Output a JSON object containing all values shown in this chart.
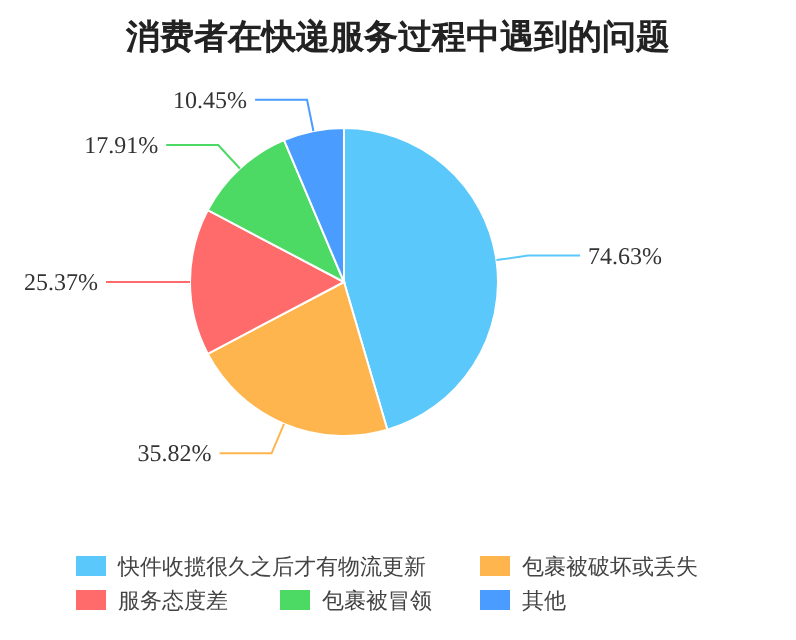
{
  "chart_data": {
    "type": "pie",
    "title": "消费者在快递服务过程中遇到的问题",
    "categories": [
      "快件收揽很久之后才有物流更新",
      "包裹被破坏或丢失",
      "服务态度差",
      "包裹被冒领",
      "其他"
    ],
    "values": [
      74.63,
      35.82,
      25.37,
      17.91,
      10.45
    ],
    "colors": [
      "#5ac8fa",
      "#ffb54d",
      "#ff6b6b",
      "#4cd964",
      "#4a9cff"
    ],
    "value_labels": [
      "74.63%",
      "35.82%",
      "25.37%",
      "17.91%",
      "10.45%"
    ],
    "legend": "bottom"
  }
}
